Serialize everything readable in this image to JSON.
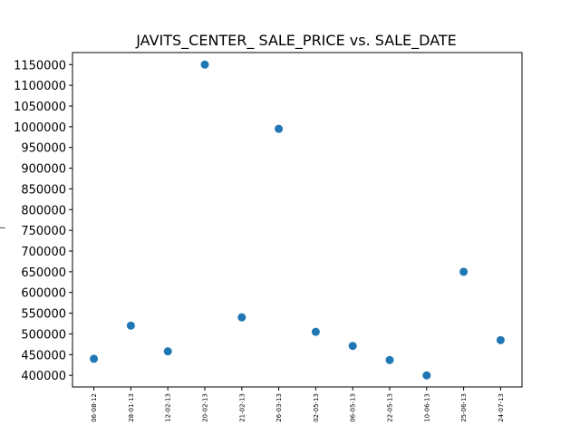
{
  "chart_data": {
    "type": "scatter",
    "title": "JAVITS_CENTER_ SALE_PRICE vs. SALE_DATE",
    "xlabel": "",
    "ylabel": "_",
    "x": [
      "06-08-12",
      "28-01-13",
      "12-02-13",
      "20-02-13",
      "21-02-13",
      "26-03-13",
      "02-05-13",
      "06-05-13",
      "22-05-13",
      "10-06-13",
      "25-06-13",
      "24-07-13"
    ],
    "series": [
      {
        "values": [
          440000,
          520000,
          458000,
          1150000,
          540000,
          995000,
          505000,
          471000,
          437000,
          400000,
          650000,
          485000
        ]
      }
    ],
    "yticks": [
      "400000",
      "450000",
      "500000",
      "550000",
      "600000",
      "650000",
      "700000",
      "750000",
      "800000",
      "850000",
      "900000",
      "950000",
      "1000000",
      "1050000",
      "1100000",
      "1150000"
    ],
    "ylim": [
      372000,
      1179000
    ],
    "grid": false,
    "marker_color": "#1f77b4"
  }
}
